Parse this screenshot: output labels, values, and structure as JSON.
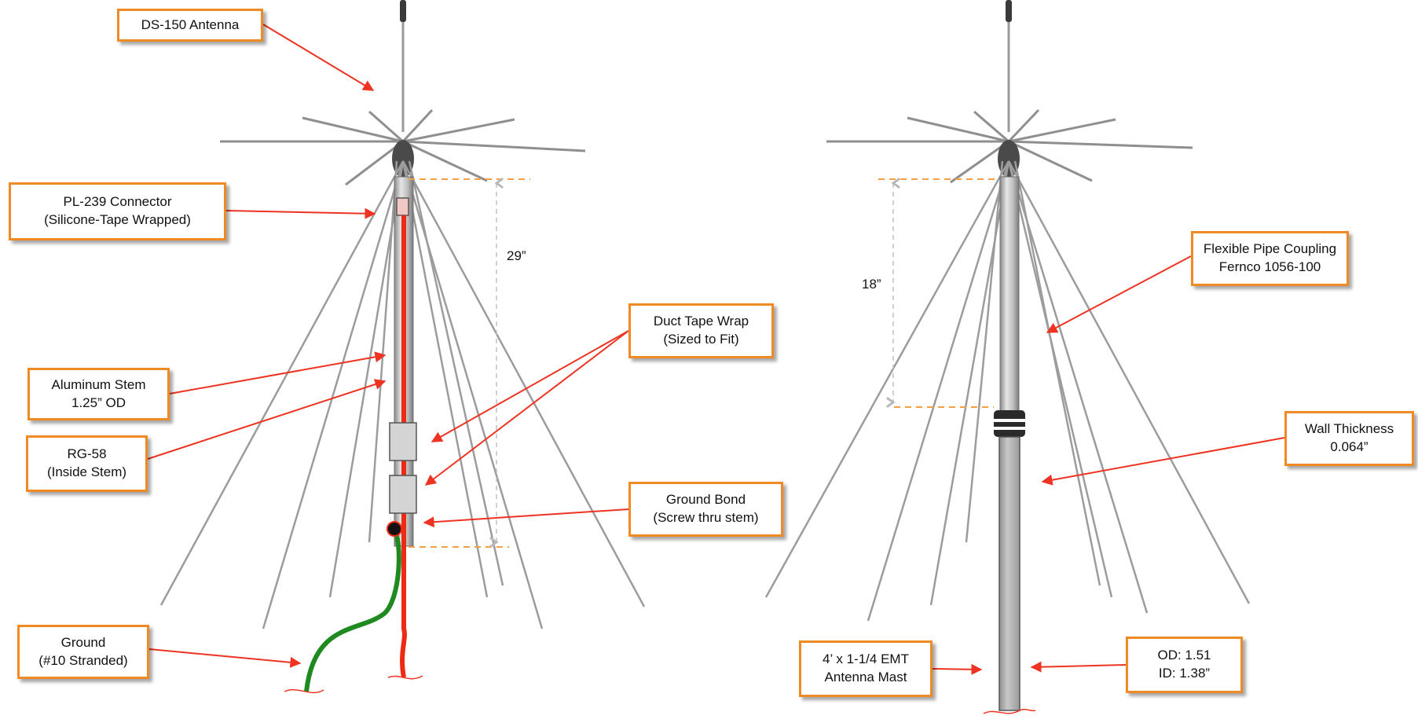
{
  "colors": {
    "callout_border": "#f08a24",
    "leader_arrow": "#ee3322",
    "coax": "#ee2a14",
    "ground_wire": "#1f8a1f",
    "dimension_line": "#f5a040",
    "dimension_arrow": "#b8b8b8",
    "stem": "#b0b0b0",
    "mast": "#b3b3b3"
  },
  "left_diagram": {
    "callouts": {
      "antenna": {
        "line1": "DS-150 Antenna"
      },
      "connector": {
        "line1": "PL-239 Connector",
        "line2": "(Silicone-Tape Wrapped)"
      },
      "stem": {
        "line1": "Aluminum Stem",
        "line2": "1.25” OD"
      },
      "coax": {
        "line1": "RG-58",
        "line2": "(Inside Stem)"
      },
      "tape": {
        "line1": "Duct Tape Wrap",
        "line2": "(Sized to Fit)"
      },
      "bond": {
        "line1": "Ground Bond",
        "line2": "(Screw thru stem)"
      },
      "ground": {
        "line1": "Ground",
        "line2": "(#10 Stranded)"
      }
    },
    "dimension": "29”"
  },
  "right_diagram": {
    "callouts": {
      "coupling": {
        "line1": "Flexible Pipe Coupling",
        "line2": "Fernco 1056-100"
      },
      "wall": {
        "line1": "Wall Thickness",
        "line2": "0.064”"
      },
      "mast": {
        "line1": "4’ x 1-1/4 EMT",
        "line2": "Antenna Mast"
      },
      "diameters": {
        "line1": "OD: 1.51",
        "line2": "ID: 1.38”"
      }
    },
    "dimension": "18”"
  }
}
